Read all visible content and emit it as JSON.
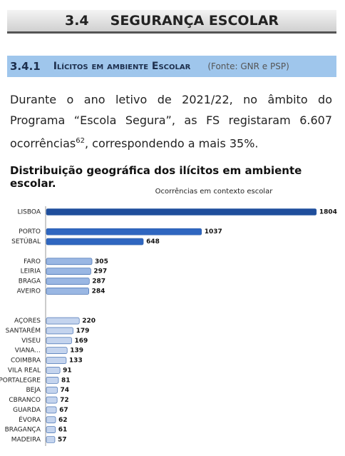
{
  "header": {
    "number": "3.4",
    "title": "SEGURANÇA ESCOLAR"
  },
  "section": {
    "number": "3.4.1",
    "title": "Ilícitos em ambiente Escolar",
    "source": "(Fonte: GNR e PSP)"
  },
  "paragraph": {
    "text": "Durante o ano letivo de 2021/22, no âmbito do Programa “Escola Segura”, as FS registaram 6.607 ocorrências",
    "footnote": "62",
    "text_end": ", correspondendo a mais 35%."
  },
  "chart_heading": "Distribuição geográfica dos ilícitos em ambiente escolar.",
  "chart_data": {
    "type": "bar",
    "orientation": "horizontal",
    "title": "Ocorrências em contexto escolar",
    "categories": [
      "LISBOA",
      null,
      "PORTO",
      "SETÚBAL",
      null,
      "FARO",
      "LEIRIA",
      "BRAGA",
      "AVEIRO",
      null,
      null,
      "AÇORES",
      "SANTARÉM",
      "VISEU",
      "VIANA...",
      "COIMBRA",
      "VILA REAL",
      "PORTALEGRE",
      "BEJA",
      "CBRANCO",
      "GUARDA",
      "ÉVORA",
      "BRAGANÇA",
      "MADEIRA"
    ],
    "values": [
      1804,
      null,
      1037,
      648,
      null,
      305,
      297,
      287,
      284,
      null,
      null,
      220,
      179,
      169,
      139,
      133,
      91,
      81,
      74,
      72,
      67,
      62,
      61,
      57
    ],
    "colors": [
      "#1f4e9c",
      null,
      "#2f66c0",
      "#2f66c0",
      null,
      "#9ab7e3",
      "#9ab7e3",
      "#9ab7e3",
      "#9ab7e3",
      null,
      null,
      "#c4d4ee",
      "#c4d4ee",
      "#c4d4ee",
      "#c4d4ee",
      "#c4d4ee",
      "#c4d4ee",
      "#c4d4ee",
      "#c4d4ee",
      "#c4d4ee",
      "#c4d4ee",
      "#c4d4ee",
      "#c4d4ee",
      "#c4d4ee"
    ],
    "xlim": [
      0,
      1900
    ]
  }
}
